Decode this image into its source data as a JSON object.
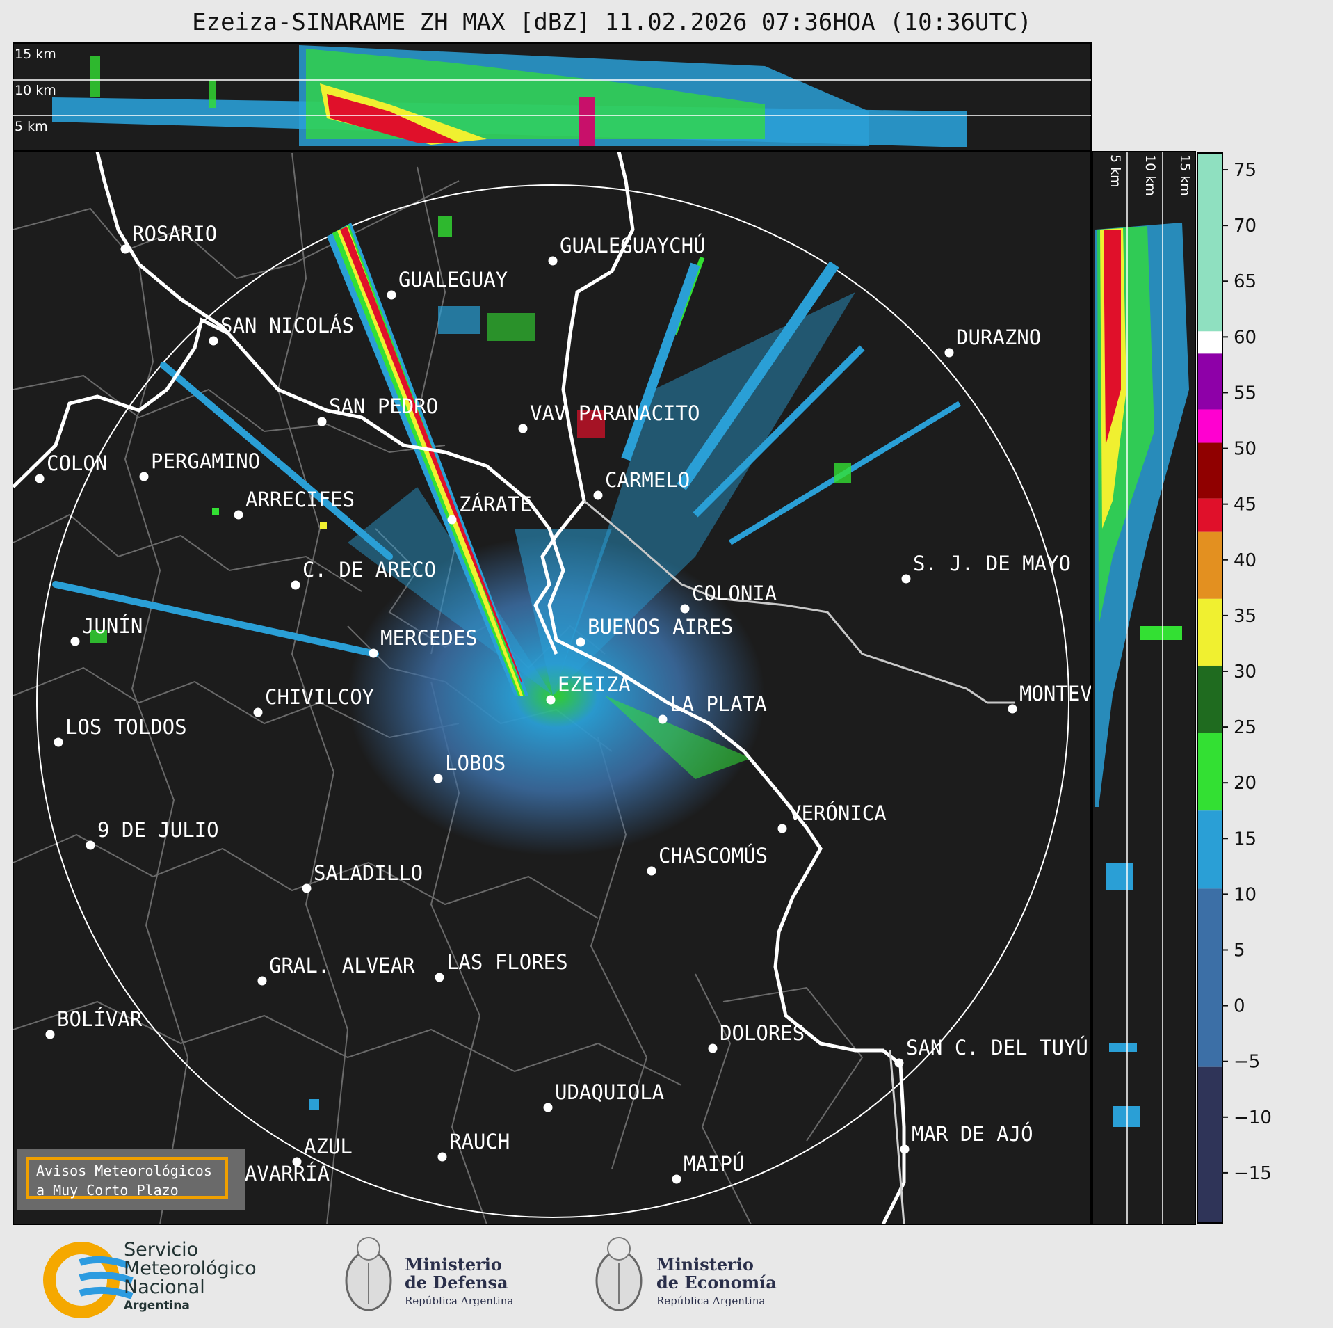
{
  "title": "Ezeiza-SINARAME ZH MAX [dBZ] 11.02.2026 07:36HOA (10:36UTC)",
  "top_panel_altitudes": [
    "15 km",
    "10 km",
    "5 km"
  ],
  "side_panel_altitudes": [
    "5 km",
    "10 km",
    "15 km"
  ],
  "colorbar": {
    "ticks": [
      "75",
      "70",
      "65",
      "60",
      "55",
      "50",
      "45",
      "40",
      "35",
      "30",
      "25",
      "20",
      "15",
      "10",
      "5",
      "0",
      "−5",
      "−10",
      "−15"
    ],
    "colors": {
      "min": "#2f3458",
      "low": "#3c6fa6",
      "blue": "#2a9fd6",
      "green_dark": "#1f6b1f",
      "green_bright": "#33e033",
      "yellow": "#f0f030",
      "orange": "#e39020",
      "red": "#e0102a",
      "darkred": "#900000",
      "magenta": "#ff00d0",
      "purple": "#8e00a8",
      "white": "#ffffff",
      "mint": "#8fe0c0"
    }
  },
  "cities": [
    {
      "name": "ROSARIO"
    },
    {
      "name": "GUALEGUAYCHÚ"
    },
    {
      "name": "GUALEGUAY"
    },
    {
      "name": "SAN NICOLÁS"
    },
    {
      "name": "DURAZNO"
    },
    {
      "name": "SAN PEDRO"
    },
    {
      "name": "VAV PARANACITO"
    },
    {
      "name": "COLON"
    },
    {
      "name": "PERGAMINO"
    },
    {
      "name": "CARMELO"
    },
    {
      "name": "ARRECIFES"
    },
    {
      "name": "ZÁRATE"
    },
    {
      "name": "S. J. DE MAYO"
    },
    {
      "name": "C. DE ARECO"
    },
    {
      "name": "COLONIA"
    },
    {
      "name": "JUNÍN"
    },
    {
      "name": "BUENOS AIRES"
    },
    {
      "name": "MERCEDES"
    },
    {
      "name": "MONTEV"
    },
    {
      "name": "EZEIZA"
    },
    {
      "name": "CHIVILCOY"
    },
    {
      "name": "LA PLATA"
    },
    {
      "name": "LOS TOLDOS"
    },
    {
      "name": "LOBOS"
    },
    {
      "name": "VERÓNICA"
    },
    {
      "name": "9 DE JULIO"
    },
    {
      "name": "CHASCOMÚS"
    },
    {
      "name": "SALADILLO"
    },
    {
      "name": "GRAL. ALVEAR"
    },
    {
      "name": "LAS FLORES"
    },
    {
      "name": "BOLÍVAR"
    },
    {
      "name": "DOLORES"
    },
    {
      "name": "SAN C. DEL TUYÚ"
    },
    {
      "name": "UDAQUIOLA"
    },
    {
      "name": "MAR DE AJÓ"
    },
    {
      "name": "AZUL"
    },
    {
      "name": "RAUCH"
    },
    {
      "name": "OLAVARRÍA"
    },
    {
      "name": "MAIPÚ"
    }
  ],
  "warning": {
    "line1": "Avisos Meteorológicos",
    "line2": "a Muy Corto Plazo"
  },
  "logos": {
    "smn": {
      "line1": "Servicio",
      "line2": "Meteorológico",
      "line3": "Nacional",
      "line4": "Argentina"
    },
    "defensa": {
      "line1": "Ministerio",
      "line2": "de Defensa",
      "sub": "República Argentina"
    },
    "economia": {
      "line1": "Ministerio",
      "line2": "de Economía",
      "sub": "República Argentina"
    }
  }
}
